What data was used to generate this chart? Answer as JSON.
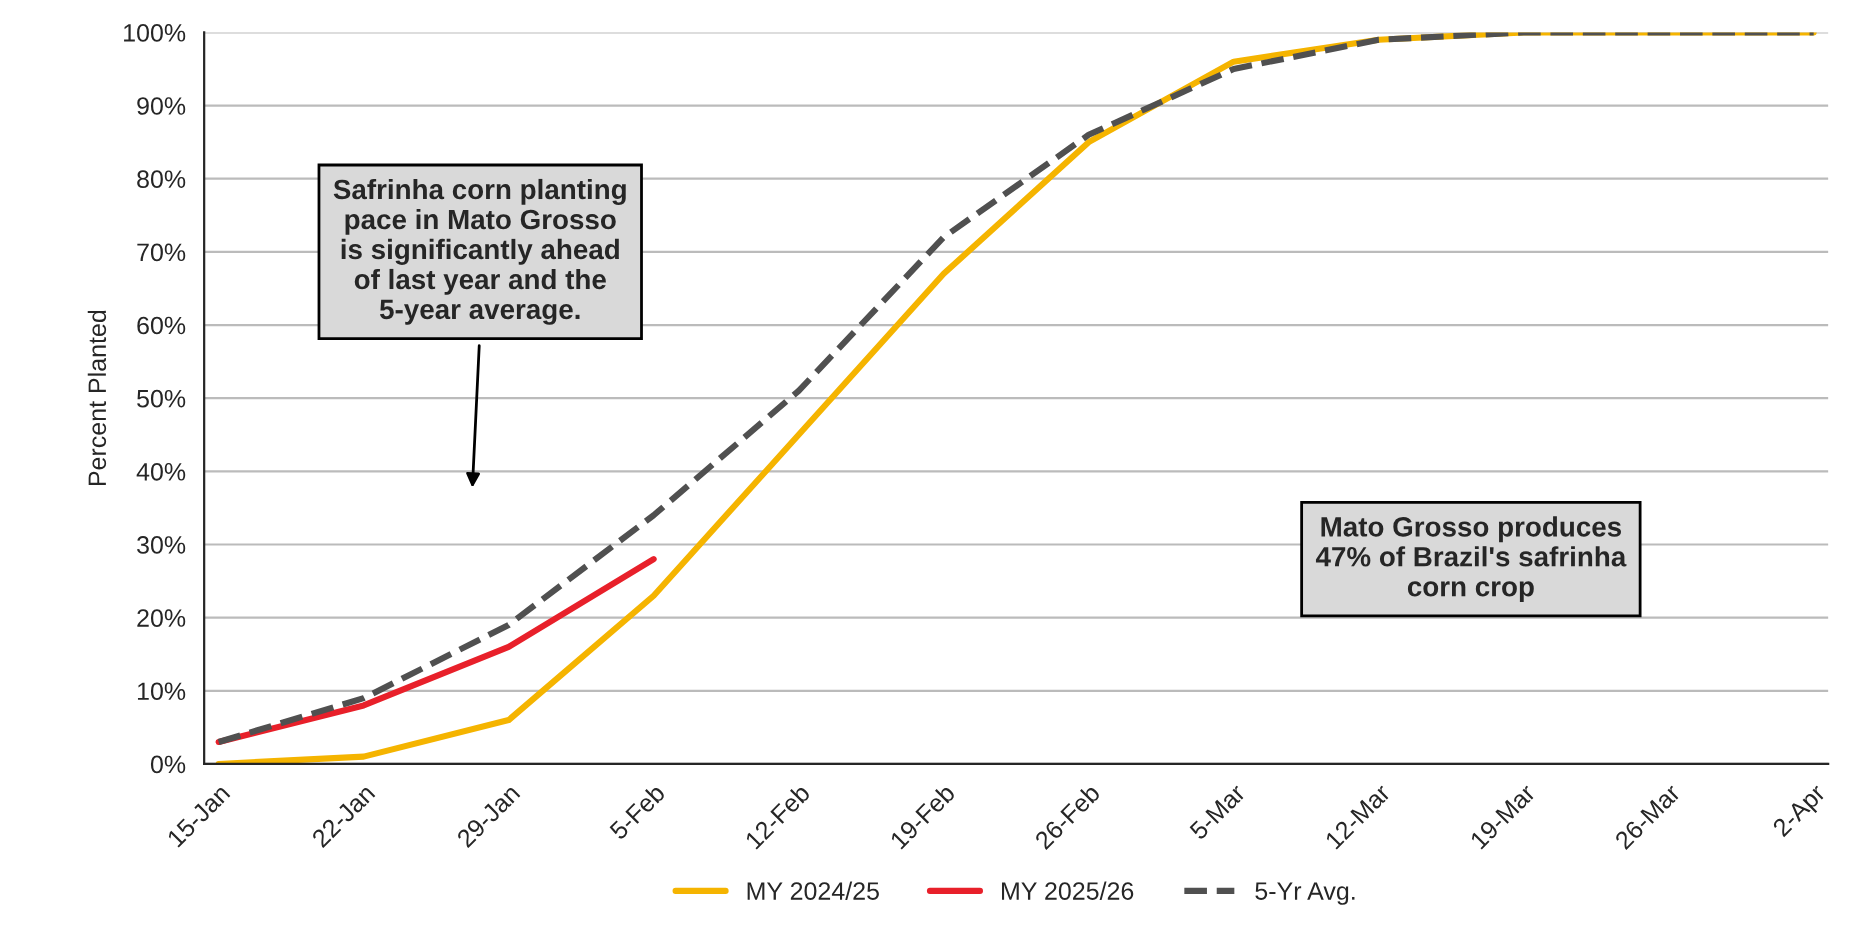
{
  "chart_data": {
    "type": "line",
    "ylabel": "Percent Planted",
    "categories": [
      "15-Jan",
      "22-Jan",
      "29-Jan",
      "5-Feb",
      "12-Feb",
      "19-Feb",
      "26-Feb",
      "5-Mar",
      "12-Mar",
      "19-Mar",
      "26-Mar",
      "2-Apr"
    ],
    "series": [
      {
        "name": "MY 2024/25",
        "color": "#f5b400",
        "line_style": "solid",
        "values": [
          0,
          1,
          6,
          23,
          45,
          67,
          85,
          96,
          99,
          100,
          100,
          100
        ]
      },
      {
        "name": "MY 2025/26",
        "color": "#e8202a",
        "line_style": "solid",
        "values": [
          3,
          8,
          16,
          28,
          null,
          null,
          null,
          null,
          null,
          null,
          null,
          null
        ]
      },
      {
        "name": "5-Yr Avg.",
        "color": "#505050",
        "line_style": "dashed",
        "values": [
          3,
          9,
          19,
          34,
          51,
          72,
          86,
          95,
          99,
          100,
          100,
          100
        ]
      }
    ],
    "ylim": [
      0,
      100
    ],
    "yticks": [
      {
        "value": 0,
        "label": "0%"
      },
      {
        "value": 10,
        "label": "10%"
      },
      {
        "value": 20,
        "label": "20%"
      },
      {
        "value": 30,
        "label": "30%"
      },
      {
        "value": 40,
        "label": "40%"
      },
      {
        "value": 50,
        "label": "50%"
      },
      {
        "value": 60,
        "label": "60%"
      },
      {
        "value": 70,
        "label": "70%"
      },
      {
        "value": 80,
        "label": "80%"
      },
      {
        "value": 90,
        "label": "90%"
      },
      {
        "value": 100,
        "label": "100%"
      }
    ],
    "grid": "y",
    "legend": "bottom",
    "marker": "none",
    "annotations": [
      "Safrinha corn planting\npace in Mato Grosso\nis significantly ahead\nof last year and the\n5-year average.",
      "Mato Grosso produces\n47% of Brazil's safrinha\ncorn crop"
    ]
  }
}
